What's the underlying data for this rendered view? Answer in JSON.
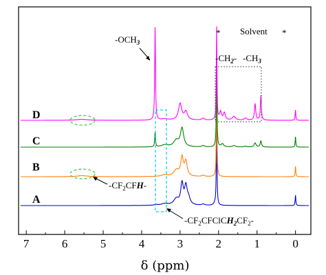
{
  "chart_data": {
    "type": "line",
    "xlabel": "δ (ppm)",
    "xlim": [
      7.2,
      -0.4
    ],
    "x_reversed": true,
    "x_ticks": [
      "7",
      "6",
      "5",
      "4",
      "3",
      "2",
      "1",
      "0"
    ],
    "y_ticks_shown": false,
    "grid": false,
    "legend": "none",
    "series": [
      {
        "name": "A",
        "color": "#0000CC",
        "offset": 0,
        "peaks": [
          [
            3.62,
            0.03,
            0.06
          ],
          [
            3.4,
            0.08,
            0.1
          ],
          [
            3.1,
            0.3,
            0.08
          ],
          [
            2.95,
            1.0,
            0.04
          ],
          [
            2.85,
            0.85,
            0.04
          ],
          [
            2.78,
            0.3,
            0.05
          ],
          [
            2.4,
            0.06,
            0.04
          ],
          [
            2.1,
            0.08,
            0.03
          ],
          [
            2.05,
            4.5,
            0.01
          ],
          [
            0.0,
            0.5,
            0.01
          ]
        ]
      },
      {
        "name": "B",
        "color": "#FF7F0E",
        "offset": 1,
        "peaks": [
          [
            5.55,
            0.05,
            0.15
          ],
          [
            3.4,
            0.08,
            0.1
          ],
          [
            3.1,
            0.3,
            0.08
          ],
          [
            2.95,
            0.9,
            0.04
          ],
          [
            2.85,
            0.7,
            0.04
          ],
          [
            2.4,
            0.06,
            0.04
          ],
          [
            2.05,
            4.5,
            0.01
          ],
          [
            0.0,
            0.5,
            0.01
          ]
        ]
      },
      {
        "name": "C",
        "color": "#008000",
        "offset": 2,
        "peaks": [
          [
            3.65,
            0.7,
            0.012
          ],
          [
            3.4,
            0.1,
            0.1
          ],
          [
            3.1,
            0.3,
            0.08
          ],
          [
            2.95,
            0.9,
            0.05
          ],
          [
            2.4,
            0.07,
            0.04
          ],
          [
            2.05,
            4.5,
            0.01
          ],
          [
            1.9,
            0.15,
            0.04
          ],
          [
            1.6,
            0.07,
            0.05
          ],
          [
            1.3,
            0.04,
            0.04
          ],
          [
            1.05,
            0.2,
            0.03
          ],
          [
            0.9,
            0.3,
            0.02
          ],
          [
            0.0,
            0.5,
            0.01
          ]
        ]
      },
      {
        "name": "D",
        "color": "#FF00FF",
        "offset": 3,
        "peaks": [
          [
            5.55,
            0.05,
            0.15
          ],
          [
            3.65,
            4.5,
            0.012
          ],
          [
            3.4,
            0.06,
            0.1
          ],
          [
            3.0,
            0.8,
            0.05
          ],
          [
            2.85,
            0.4,
            0.05
          ],
          [
            2.4,
            0.09,
            0.04
          ],
          [
            2.05,
            4.5,
            0.01
          ],
          [
            1.95,
            0.4,
            0.03
          ],
          [
            1.85,
            0.35,
            0.03
          ],
          [
            1.6,
            0.18,
            0.05
          ],
          [
            1.3,
            0.1,
            0.04
          ],
          [
            1.05,
            0.8,
            0.02
          ],
          [
            0.9,
            1.2,
            0.015
          ],
          [
            0.0,
            0.5,
            0.01
          ]
        ]
      }
    ],
    "annotations": {
      "och3": "-OCH",
      "och3_sub": "3",
      "star_left": "*",
      "star_right": "*",
      "solvent": "Solvent",
      "ch2_label": "-CH",
      "ch2_sub": "2",
      "ch2_dash": "-",
      "ch3_label": "-CH",
      "ch3_sub": "3",
      "cf2cfh_pre": "-CF",
      "cf2cfh_sub": "2",
      "cf2cfh_mid": "CF",
      "cf2cfh_h": "H",
      "cf2cfh_post": "-",
      "backbone_pre": "-CF",
      "backbone_sub1": "2",
      "backbone_mid1": "CFClC",
      "backbone_h": "H",
      "backbone_sub2": "2",
      "backbone_mid2": "CF",
      "backbone_sub3": "2",
      "backbone_post": "-"
    }
  }
}
